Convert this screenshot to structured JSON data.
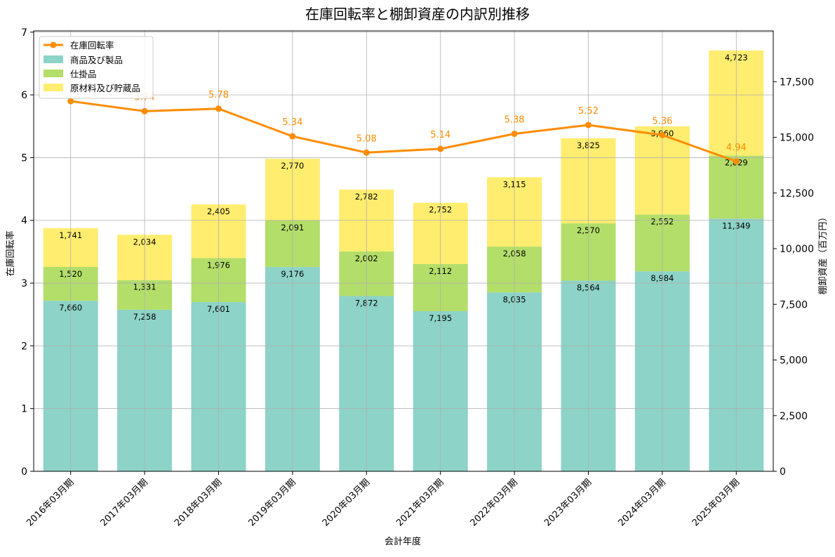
{
  "chart_data": {
    "type": "bar",
    "title": "在庫回転率と棚卸資産の内訳別推移",
    "xlabel": "会計年度",
    "ylabel_left": "在庫回転率",
    "ylabel_right": "棚卸資産（百万円）",
    "categories": [
      "2016年03月期",
      "2017年03月期",
      "2018年03月期",
      "2019年03月期",
      "2020年03月期",
      "2021年03月期",
      "2022年03月期",
      "2023年03月期",
      "2024年03月期",
      "2025年03月期"
    ],
    "stacked_series": [
      {
        "name": "商品及び製品",
        "color": "#8dd3c7",
        "values": [
          7660,
          7258,
          7601,
          9176,
          7872,
          7195,
          8035,
          8564,
          8984,
          11349
        ],
        "labels": [
          "7,660",
          "7,258",
          "7,601",
          "9,176",
          "7,872",
          "7,195",
          "8,035",
          "8,564",
          "8,984",
          "11,349"
        ]
      },
      {
        "name": "仕掛品",
        "color": "#b3de69",
        "values": [
          1520,
          1331,
          1976,
          2091,
          2002,
          2112,
          2058,
          2570,
          2552,
          2829
        ],
        "labels": [
          "1,520",
          "1,331",
          "1,976",
          "2,091",
          "2,002",
          "2,112",
          "2,058",
          "2,570",
          "2,552",
          "2,829"
        ]
      },
      {
        "name": "原材料及び貯蔵品",
        "color": "#ffed6f",
        "values": [
          1741,
          2034,
          2405,
          2770,
          2782,
          2752,
          3115,
          3825,
          3960,
          4723
        ],
        "labels": [
          "1,741",
          "2,034",
          "2,405",
          "2,770",
          "2,782",
          "2,752",
          "3,115",
          "3,825",
          "3,960",
          "4,723"
        ]
      }
    ],
    "line_series": {
      "name": "在庫回転率",
      "color": "#ff8c00",
      "values": [
        5.9,
        5.74,
        5.78,
        5.34,
        5.08,
        5.14,
        5.38,
        5.52,
        5.36,
        4.94
      ],
      "labels": [
        "",
        "5.74",
        "5.78",
        "5.34",
        "5.08",
        "5.14",
        "5.38",
        "5.52",
        "5.36",
        "4.94"
      ]
    },
    "ylim_left": [
      0,
      7.02
    ],
    "ylim_right": [
      0,
      19780
    ],
    "yticks_left": [
      0,
      1,
      2,
      3,
      4,
      5,
      6,
      7
    ],
    "yticks_left_labels": [
      "0",
      "1",
      "2",
      "3",
      "4",
      "5",
      "6",
      "7"
    ],
    "yticks_right": [
      0,
      2500,
      5000,
      7500,
      10000,
      12500,
      15000,
      17500
    ],
    "yticks_right_labels": [
      "0",
      "2,500",
      "5,000",
      "7,500",
      "10,000",
      "12,500",
      "15,000",
      "17,500"
    ],
    "grid": true,
    "legend_position": "top-left"
  }
}
